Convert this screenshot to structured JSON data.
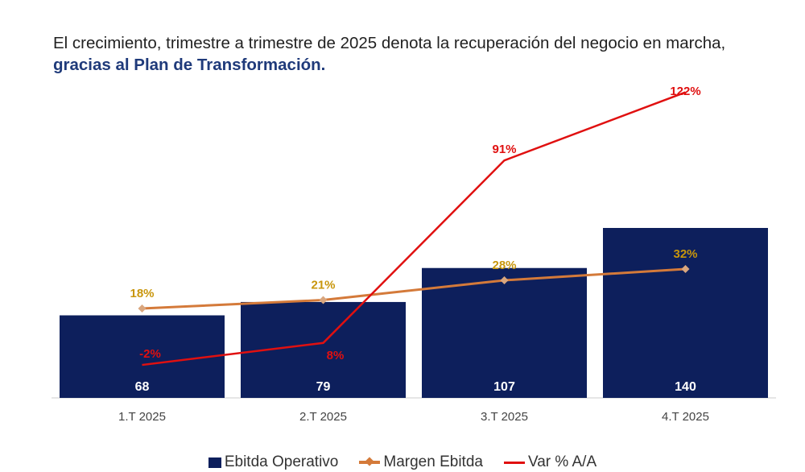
{
  "headline": {
    "text_plain": "El crecimiento, trimestre a trimestre de 2025 denota la recuperación del negocio en marcha, ",
    "text_strong": "gracias al Plan de Transformación."
  },
  "colors": {
    "bar": "#0d1f5c",
    "margin_line": "#d47a3a",
    "margin_marker": "#d9a67e",
    "margin_label": "#c8960c",
    "var_line": "#e01010",
    "var_label": "#e01010",
    "bar_label": "#ffffff",
    "axis": "#cccccc",
    "tick": "#444444"
  },
  "chart_data": {
    "type": "bar",
    "categories": [
      "1.T 2025",
      "2.T 2025",
      "3.T 2025",
      "4.T 2025"
    ],
    "series": [
      {
        "name": "Ebitda Operativo",
        "kind": "bar",
        "values": [
          68,
          79,
          107,
          140
        ],
        "labels": [
          "68",
          "79",
          "107",
          "140"
        ]
      },
      {
        "name": "Margen Ebitda",
        "kind": "line",
        "marker": "diamond",
        "values": [
          18,
          21,
          28,
          32
        ],
        "labels": [
          "18%",
          "21%",
          "28%",
          "32%"
        ]
      },
      {
        "name": "Var % A/A",
        "kind": "line",
        "values": [
          -2,
          8,
          91,
          122
        ],
        "labels": [
          "-2%",
          "8%",
          "91%",
          "122%"
        ]
      }
    ],
    "legend": "bottom",
    "grid": false
  }
}
